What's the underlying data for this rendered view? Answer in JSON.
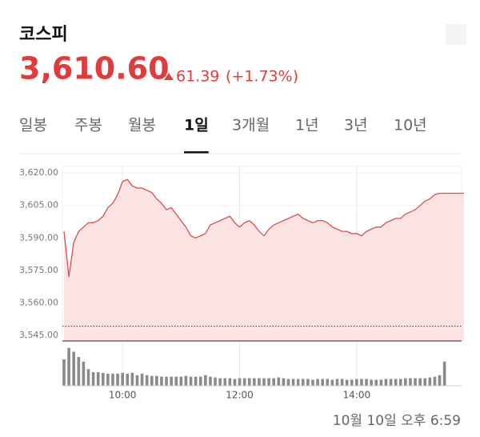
{
  "header": {
    "title": "코스피",
    "price": "3,610.60",
    "change": "61.39",
    "change_pct": "(+1.73%)"
  },
  "tabs": [
    "일봉",
    "주봉",
    "월봉",
    "1일",
    "3개월",
    "1년",
    "3년",
    "10년"
  ],
  "selected_tab": 3,
  "chart_data": {
    "type": "line",
    "x": [
      "09:00",
      "09:05",
      "09:10",
      "09:15",
      "09:20",
      "09:25",
      "09:30",
      "09:35",
      "09:40",
      "09:45",
      "09:50",
      "09:55",
      "10:00",
      "10:05",
      "10:10",
      "10:15",
      "10:20",
      "10:25",
      "10:30",
      "10:35",
      "10:40",
      "10:45",
      "10:50",
      "10:55",
      "11:00",
      "11:05",
      "11:10",
      "11:15",
      "11:20",
      "11:25",
      "11:30",
      "11:35",
      "11:40",
      "11:45",
      "11:50",
      "11:55",
      "12:00",
      "12:05",
      "12:10",
      "12:15",
      "12:20",
      "12:25",
      "12:30",
      "12:35",
      "12:40",
      "12:45",
      "12:50",
      "12:55",
      "13:00",
      "13:05",
      "13:10",
      "13:15",
      "13:20",
      "13:25",
      "13:30",
      "13:35",
      "13:40",
      "13:45",
      "13:50",
      "13:55",
      "14:00",
      "14:05",
      "14:10",
      "14:15",
      "14:20",
      "14:25",
      "14:30",
      "14:35",
      "14:40",
      "14:45",
      "14:50",
      "14:55",
      "15:00",
      "15:05",
      "15:10",
      "15:15",
      "15:20",
      "15:25",
      "15:30",
      "15:35",
      "15:40",
      "15:45",
      "15:50"
    ],
    "values": [
      3593,
      3572,
      3588,
      3593,
      3595,
      3597,
      3597,
      3598,
      3600,
      3604,
      3606,
      3610,
      3616,
      3617,
      3614,
      3613,
      3613,
      3612,
      3611,
      3608,
      3606,
      3603,
      3604,
      3601,
      3598,
      3595,
      3591,
      3590,
      3591,
      3592,
      3596,
      3597,
      3598,
      3599,
      3600,
      3597,
      3595,
      3597,
      3598,
      3596,
      3593,
      3591,
      3594,
      3596,
      3597,
      3598,
      3599,
      3600,
      3601,
      3599,
      3598,
      3597,
      3598,
      3598,
      3597,
      3595,
      3594,
      3593,
      3593,
      3592,
      3592,
      3591,
      3593,
      3594,
      3595,
      3595,
      3597,
      3598,
      3599,
      3599,
      3601,
      3602,
      3603,
      3605,
      3607,
      3608,
      3610,
      3610.6,
      3610.6,
      3610.6,
      3610.6,
      3610.6,
      3610.6
    ],
    "color": "#e04b4b",
    "area_color": "#fde4e4",
    "reference_line": 3549.21,
    "ylim": [
      3542.4,
      3623
    ],
    "yticks": [
      {
        "value": 3620,
        "label": "3,620.00"
      },
      {
        "value": 3605,
        "label": "3,605.00"
      },
      {
        "value": 3590,
        "label": "3,590.00"
      },
      {
        "value": 3575,
        "label": "3,575.00"
      },
      {
        "value": 3560,
        "label": "3,560.00"
      },
      {
        "value": 3545,
        "label": "3,545.00"
      }
    ],
    "xticks": [
      "10:00",
      "12:00",
      "14:00"
    ],
    "grid": true,
    "volume": [
      35,
      50,
      45,
      38,
      32,
      22,
      18,
      18,
      17,
      16,
      16,
      16,
      17,
      16,
      17,
      14,
      16,
      14,
      13,
      13,
      12,
      12,
      12,
      12,
      12,
      13,
      12,
      12,
      12,
      14,
      12,
      11,
      10,
      10,
      10,
      9,
      10,
      10,
      10,
      10,
      10,
      10,
      10,
      10,
      11,
      10,
      9,
      9,
      9,
      9,
      9,
      8,
      9,
      9,
      9,
      8,
      9,
      9,
      8,
      8,
      9,
      9,
      9,
      8,
      8,
      8,
      9,
      9,
      9,
      9,
      10,
      10,
      10,
      10,
      10,
      11,
      12,
      14,
      32,
      null,
      null,
      null,
      null
    ],
    "volume_color": "#8a8a8a",
    "volume_lim": [
      0,
      55
    ]
  },
  "footer": "10월 10일 오후 6:59"
}
